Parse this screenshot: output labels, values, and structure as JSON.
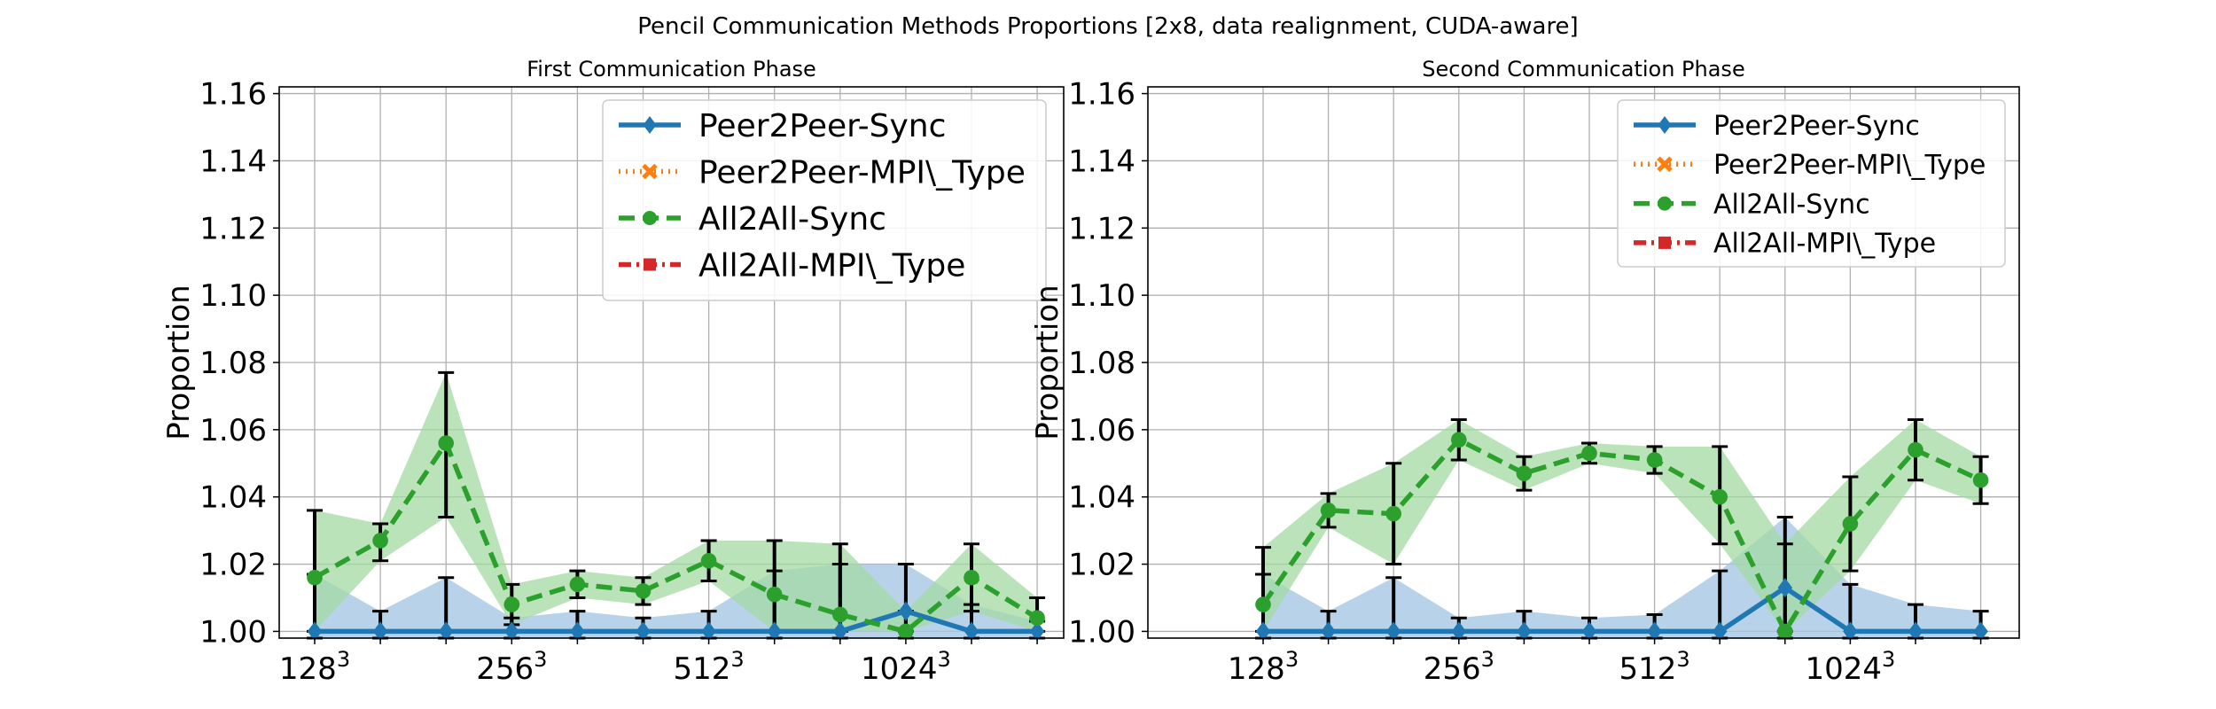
{
  "figure": {
    "title": "Pencil Communication Methods Proportions [2x8, data realignment, CUDA-aware]"
  },
  "colors": {
    "p2p_sync": "#1f77b4",
    "p2p_mpi": "#ff7f0e",
    "a2a_sync": "#2ca02c",
    "a2a_mpi": "#d62728",
    "p2p_band": "#a6c8e3",
    "a2a_band": "#a3daa3",
    "grid": "#b0b0b0",
    "errorbar": "#000000"
  },
  "chart_data": [
    {
      "type": "line",
      "title": "First Communication Phase",
      "ylabel": "Proportion",
      "xlabel": "",
      "ylim": [
        0.998,
        1.162
      ],
      "yticks": [
        "1.00",
        "1.02",
        "1.04",
        "1.06",
        "1.08",
        "1.10",
        "1.12",
        "1.14",
        "1.16"
      ],
      "xticks": [
        {
          "base": "128",
          "exp": "3",
          "index": 0
        },
        {
          "base": "256",
          "exp": "3",
          "index": 3
        },
        {
          "base": "512",
          "exp": "3",
          "index": 6
        },
        {
          "base": "1024",
          "exp": "3",
          "index": 9
        }
      ],
      "n_points": 12,
      "grid": true,
      "legend_position": "top-right",
      "legend": [
        "Peer2Peer-Sync",
        "Peer2Peer-MPI\\_Type",
        "All2All-Sync",
        "All2All-MPI\\_Type"
      ],
      "series": [
        {
          "name": "Peer2Peer-Sync",
          "style": "solid",
          "marker": "diamond",
          "values": [
            1.0,
            1.0,
            1.0,
            1.0,
            1.0,
            1.0,
            1.0,
            1.0,
            1.0,
            1.006,
            1.0,
            1.0
          ],
          "band_upper": [
            1.017,
            1.006,
            1.016,
            1.004,
            1.006,
            1.004,
            1.006,
            1.018,
            1.02,
            1.02,
            1.008,
            1.003
          ],
          "err_upper": [
            1.017,
            1.006,
            1.016,
            1.004,
            1.006,
            1.004,
            1.006,
            1.018,
            1.02,
            1.02,
            1.008,
            1.003
          ]
        },
        {
          "name": "All2All-Sync",
          "style": "dashed",
          "marker": "circle",
          "values": [
            1.016,
            1.027,
            1.056,
            1.008,
            1.014,
            1.012,
            1.021,
            1.011,
            1.005,
            1.0,
            1.016,
            1.004
          ],
          "band_upper": [
            1.036,
            1.032,
            1.077,
            1.014,
            1.018,
            1.016,
            1.027,
            1.027,
            1.026,
            1.006,
            1.026,
            1.01
          ],
          "band_lower": [
            1.0,
            1.021,
            1.034,
            1.002,
            1.01,
            1.008,
            1.015,
            1.0,
            1.0,
            1.0,
            1.006,
            1.0
          ]
        }
      ]
    },
    {
      "type": "line",
      "title": "Second Communication Phase",
      "ylabel": "Proportion",
      "xlabel": "",
      "ylim": [
        0.998,
        1.162
      ],
      "yticks": [
        "1.00",
        "1.02",
        "1.04",
        "1.06",
        "1.08",
        "1.10",
        "1.12",
        "1.14",
        "1.16"
      ],
      "xticks": [
        {
          "base": "128",
          "exp": "3",
          "index": 0
        },
        {
          "base": "256",
          "exp": "3",
          "index": 3
        },
        {
          "base": "512",
          "exp": "3",
          "index": 6
        },
        {
          "base": "1024",
          "exp": "3",
          "index": 9
        }
      ],
      "n_points": 12,
      "grid": true,
      "legend_position": "top-right",
      "legend": [
        "Peer2Peer-Sync",
        "Peer2Peer-MPI\\_Type",
        "All2All-Sync",
        "All2All-MPI\\_Type"
      ],
      "series": [
        {
          "name": "Peer2Peer-Sync",
          "style": "solid",
          "marker": "diamond",
          "values": [
            1.0,
            1.0,
            1.0,
            1.0,
            1.0,
            1.0,
            1.0,
            1.0,
            1.013,
            1.0,
            1.0,
            1.0
          ],
          "band_upper": [
            1.017,
            1.006,
            1.016,
            1.004,
            1.006,
            1.004,
            1.005,
            1.018,
            1.034,
            1.014,
            1.008,
            1.006
          ],
          "err_upper": [
            1.017,
            1.006,
            1.016,
            1.004,
            1.006,
            1.004,
            1.005,
            1.018,
            1.034,
            1.014,
            1.008,
            1.006
          ]
        },
        {
          "name": "All2All-Sync",
          "style": "dashed",
          "marker": "circle",
          "values": [
            1.008,
            1.036,
            1.035,
            1.057,
            1.047,
            1.053,
            1.051,
            1.04,
            1.0,
            1.032,
            1.054,
            1.045
          ],
          "band_upper": [
            1.025,
            1.041,
            1.05,
            1.063,
            1.052,
            1.056,
            1.055,
            1.055,
            1.026,
            1.046,
            1.063,
            1.052
          ],
          "band_lower": [
            1.0,
            1.031,
            1.02,
            1.051,
            1.042,
            1.05,
            1.047,
            1.026,
            1.0,
            1.018,
            1.045,
            1.038
          ]
        }
      ]
    }
  ]
}
